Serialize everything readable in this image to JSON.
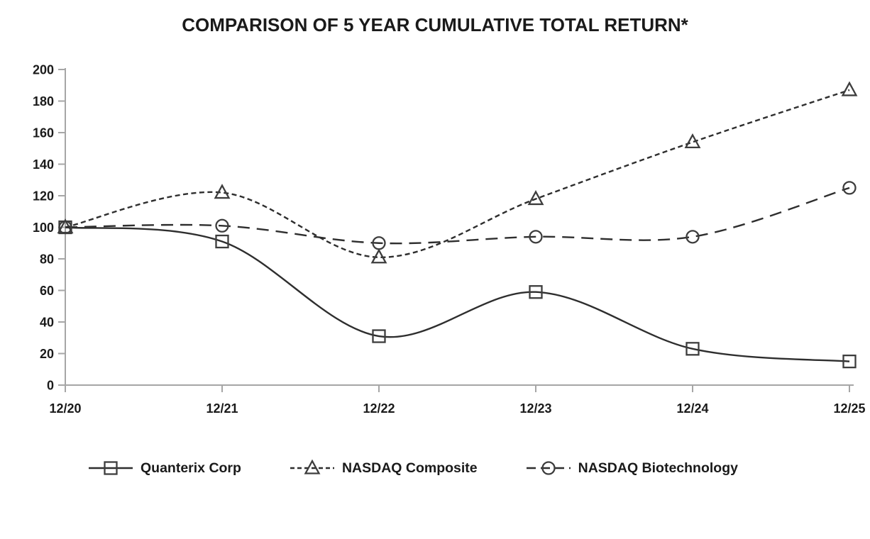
{
  "chart_data": {
    "type": "line",
    "title": "COMPARISON OF 5 YEAR CUMULATIVE TOTAL RETURN*",
    "xlabel": "",
    "ylabel": "",
    "categories": [
      "12/20",
      "12/21",
      "12/22",
      "12/23",
      "12/24",
      "12/25"
    ],
    "series": [
      {
        "name": "Quanterix Corp",
        "marker": "square",
        "line_style": "solid",
        "values": [
          100,
          91,
          31,
          59,
          23,
          15
        ]
      },
      {
        "name": "NASDAQ Composite",
        "marker": "triangle",
        "line_style": "dotted",
        "values": [
          100,
          122,
          81,
          118,
          154,
          187
        ]
      },
      {
        "name": "NASDAQ Biotechnology",
        "marker": "circle",
        "line_style": "dashed",
        "values": [
          100,
          101,
          90,
          94,
          94,
          125
        ]
      }
    ],
    "ylim": [
      0,
      200
    ],
    "ytick_step": 20,
    "yticks": [
      0,
      20,
      40,
      60,
      80,
      100,
      120,
      140,
      160,
      180,
      200
    ],
    "grid": false,
    "smooth": true,
    "legend_position": "bottom",
    "colors": {
      "series_line": "#2e2e2e",
      "marker_stroke": "#3d3d3d",
      "axis": "#a6a6a6",
      "text": "#1a1a1a"
    }
  }
}
